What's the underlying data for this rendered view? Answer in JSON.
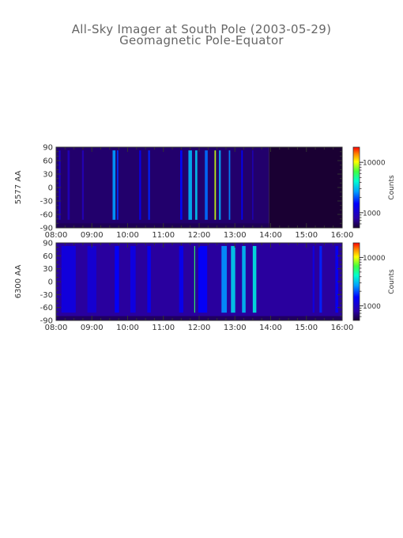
{
  "chart_data": {
    "type": "heatmap",
    "title": "All-Sky Imager at South Pole (2003-05-29)",
    "subtitle": "Geomagnetic Pole-Equator",
    "x_ticks": [
      "08:00",
      "09:00",
      "10:00",
      "11:00",
      "12:00",
      "13:00",
      "14:00",
      "15:00",
      "16:00"
    ],
    "y_ticks": [
      "90",
      "60",
      "30",
      "0",
      "-30",
      "-60",
      "-90"
    ],
    "x_range_hours": [
      8,
      16
    ],
    "y_range": [
      -90,
      90
    ],
    "log_scale_colorbar": true,
    "panels": [
      {
        "ylabel": "5577 AA",
        "colorbar_label": "Counts",
        "colorbar_ticks": [
          "10000",
          "1000"
        ],
        "colorbar_tick_values": [
          10000,
          1000
        ],
        "colorbar_range": [
          500,
          20000
        ],
        "baseline_counts": 620,
        "data_end_hour": 13.95,
        "bands": [
          {
            "t": 8.1,
            "w": 0.05,
            "counts": 1000
          },
          {
            "t": 8.35,
            "w": 0.06,
            "counts": 880
          },
          {
            "t": 8.75,
            "w": 0.05,
            "counts": 860
          },
          {
            "t": 9.62,
            "w": 0.08,
            "counts": 2600
          },
          {
            "t": 9.72,
            "w": 0.04,
            "counts": 1800
          },
          {
            "t": 10.35,
            "w": 0.05,
            "counts": 1350
          },
          {
            "t": 10.6,
            "w": 0.05,
            "counts": 1700
          },
          {
            "t": 11.5,
            "w": 0.06,
            "counts": 1550
          },
          {
            "t": 11.75,
            "w": 0.1,
            "counts": 2900
          },
          {
            "t": 11.92,
            "w": 0.06,
            "counts": 3100
          },
          {
            "t": 12.2,
            "w": 0.08,
            "counts": 2200
          },
          {
            "t": 12.45,
            "w": 0.04,
            "counts": 9000
          },
          {
            "t": 12.58,
            "w": 0.05,
            "counts": 2800
          },
          {
            "t": 12.85,
            "w": 0.04,
            "counts": 2400
          },
          {
            "t": 13.2,
            "w": 0.04,
            "counts": 1500
          },
          {
            "t": 13.5,
            "w": 0.03,
            "counts": 950
          }
        ]
      },
      {
        "ylabel": "6300 AA",
        "colorbar_label": "Counts",
        "colorbar_ticks": [
          "10000",
          "1000"
        ],
        "colorbar_tick_values": [
          10000,
          1000
        ],
        "colorbar_range": [
          500,
          20000
        ],
        "baseline_counts": 750,
        "data_end_hour": 16,
        "bands": [
          {
            "t": 8.35,
            "w": 0.4,
            "counts": 1200
          },
          {
            "t": 9.0,
            "w": 0.25,
            "counts": 1100
          },
          {
            "t": 9.7,
            "w": 0.12,
            "counts": 1500
          },
          {
            "t": 10.15,
            "w": 0.15,
            "counts": 1250
          },
          {
            "t": 10.6,
            "w": 0.1,
            "counts": 1350
          },
          {
            "t": 11.5,
            "w": 0.12,
            "counts": 1350
          },
          {
            "t": 11.87,
            "w": 0.015,
            "counts": 6000
          },
          {
            "t": 12.1,
            "w": 0.25,
            "counts": 1500
          },
          {
            "t": 12.7,
            "w": 0.15,
            "counts": 2500
          },
          {
            "t": 12.95,
            "w": 0.12,
            "counts": 3300
          },
          {
            "t": 13.25,
            "w": 0.1,
            "counts": 3000
          },
          {
            "t": 13.55,
            "w": 0.1,
            "counts": 3700
          },
          {
            "t": 15.2,
            "w": 0.05,
            "counts": 1200
          },
          {
            "t": 15.4,
            "w": 0.07,
            "counts": 1700
          },
          {
            "t": 15.85,
            "w": 0.08,
            "counts": 1400
          }
        ]
      }
    ]
  }
}
